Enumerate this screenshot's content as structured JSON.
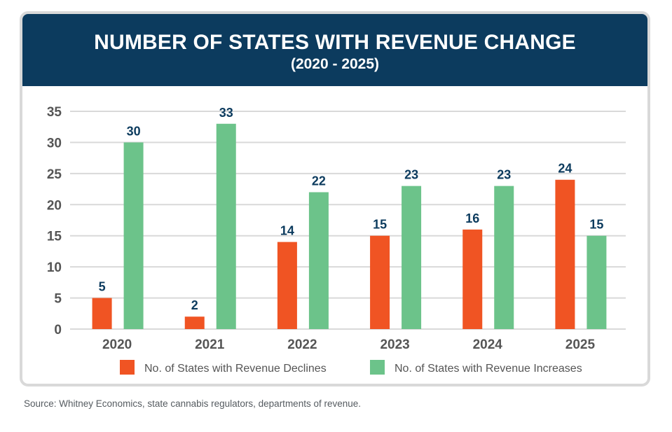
{
  "colors": {
    "header_bg": "#0c3b5e",
    "declines": "#f05423",
    "increases": "#6cc38a",
    "grid": "#d9d9d9"
  },
  "source_note": "Source: Whitney Economics, state cannabis regulators, departments of revenue.",
  "chart_data": {
    "type": "bar",
    "title": "NUMBER OF STATES WITH REVENUE CHANGE",
    "subtitle": "(2020 - 2025)",
    "categories": [
      "2020",
      "2021",
      "2022",
      "2023",
      "2024",
      "2025"
    ],
    "series": [
      {
        "name": "No. of States with Revenue Declines",
        "values": [
          5,
          2,
          14,
          15,
          16,
          24
        ]
      },
      {
        "name": "No. of States with Revenue Increases",
        "values": [
          30,
          33,
          22,
          23,
          23,
          15
        ]
      }
    ],
    "data_labels": [
      [
        "5",
        "2",
        "14",
        "15",
        "16",
        "24"
      ],
      [
        "30",
        "33",
        "22",
        "23",
        "23",
        "15"
      ]
    ],
    "ylim": [
      0,
      35
    ],
    "yticks": [
      0,
      5,
      10,
      15,
      20,
      25,
      30,
      35
    ],
    "grid": true,
    "legend_position": "bottom"
  }
}
